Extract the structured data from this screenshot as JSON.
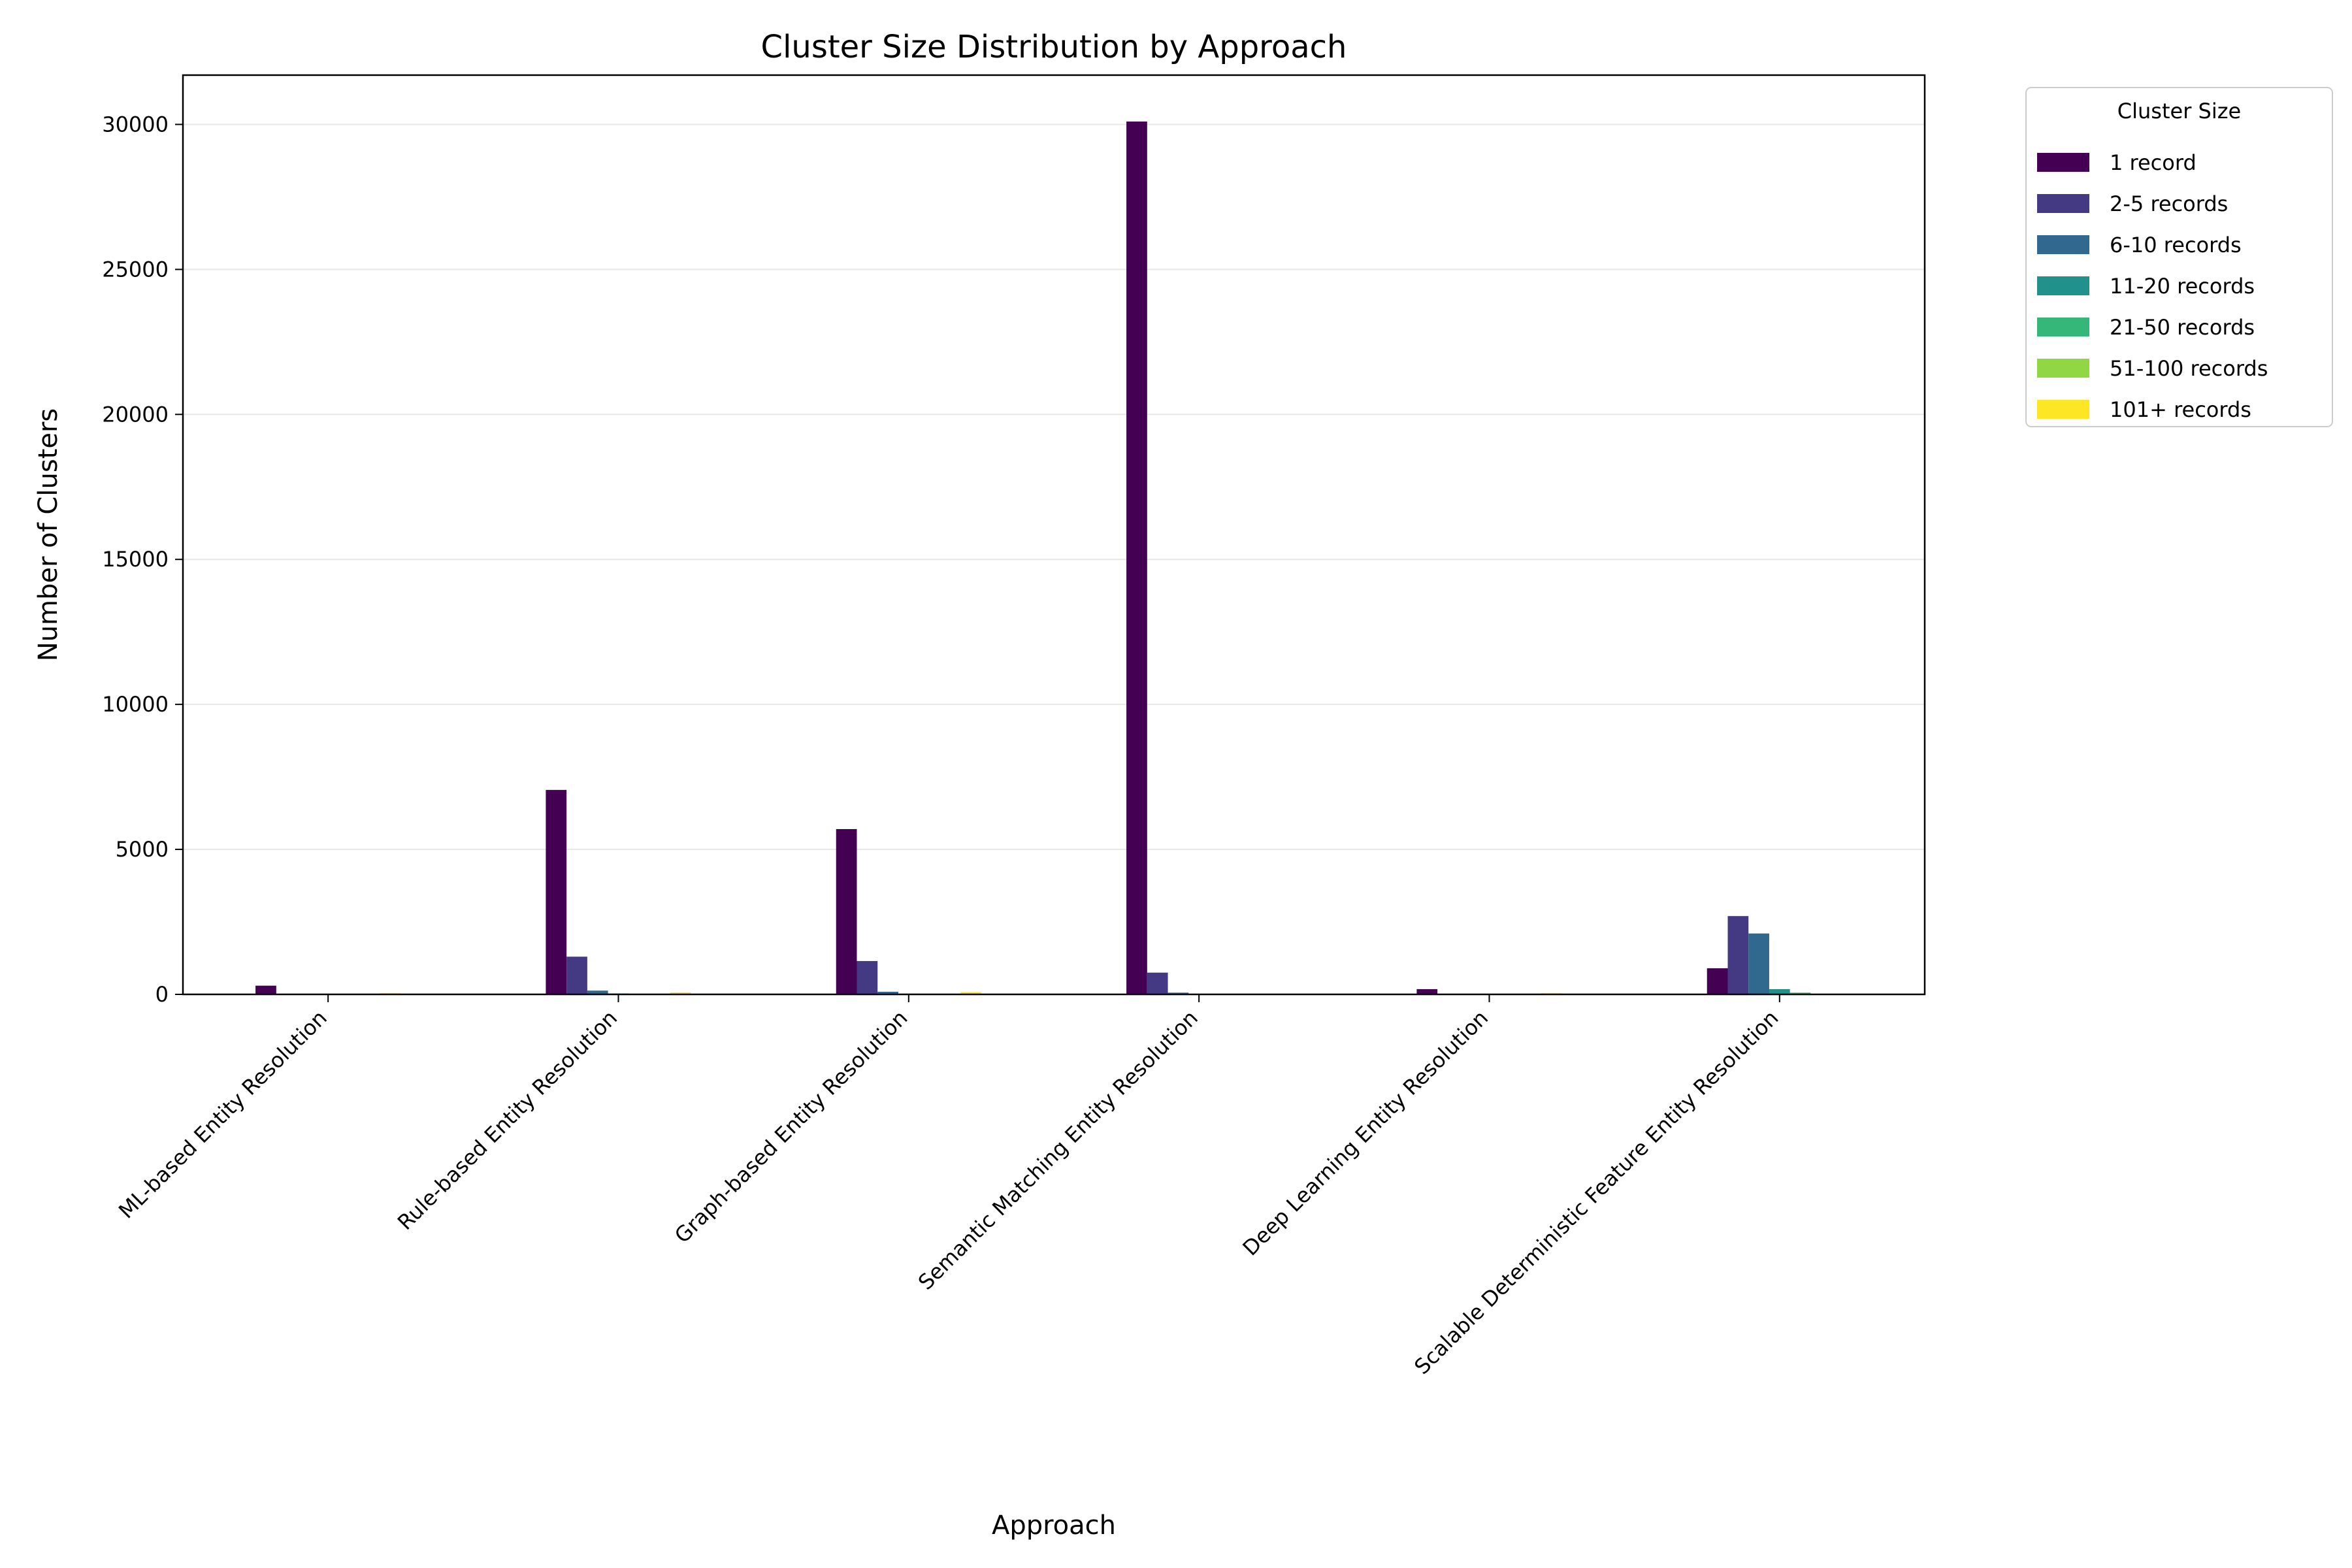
{
  "chart_data": {
    "type": "bar",
    "title": "Cluster Size Distribution by Approach",
    "xlabel": "Approach",
    "ylabel": "Number of Clusters",
    "ylim": [
      0,
      31700
    ],
    "yticks": [
      0,
      5000,
      10000,
      15000,
      20000,
      25000,
      30000
    ],
    "grid": "y",
    "legend_title": "Cluster Size",
    "legend_position": "outside-top-right",
    "categories": [
      "ML-based Entity Resolution",
      "Rule-based Entity Resolution",
      "Graph-based Entity Resolution",
      "Semantic Matching Entity Resolution",
      "Deep Learning Entity Resolution",
      "Scalable Deterministic Feature Entity Resolution"
    ],
    "series": [
      {
        "name": "1 record",
        "color": "#440154",
        "values": [
          300,
          7050,
          5700,
          30100,
          180,
          900
        ]
      },
      {
        "name": "2-5 records",
        "color": "#443983",
        "values": [
          10,
          1300,
          1150,
          750,
          10,
          2700
        ]
      },
      {
        "name": "6-10 records",
        "color": "#31688e",
        "values": [
          5,
          130,
          90,
          60,
          5,
          2100
        ]
      },
      {
        "name": "11-20 records",
        "color": "#21918c",
        "values": [
          5,
          30,
          25,
          15,
          5,
          180
        ]
      },
      {
        "name": "21-50 records",
        "color": "#35b779",
        "values": [
          10,
          15,
          10,
          5,
          10,
          60
        ]
      },
      {
        "name": "51-100 records",
        "color": "#90d743",
        "values": [
          20,
          20,
          20,
          5,
          20,
          15
        ]
      },
      {
        "name": "101+ records",
        "color": "#fde725",
        "values": [
          40,
          70,
          80,
          10,
          40,
          10
        ]
      }
    ]
  }
}
